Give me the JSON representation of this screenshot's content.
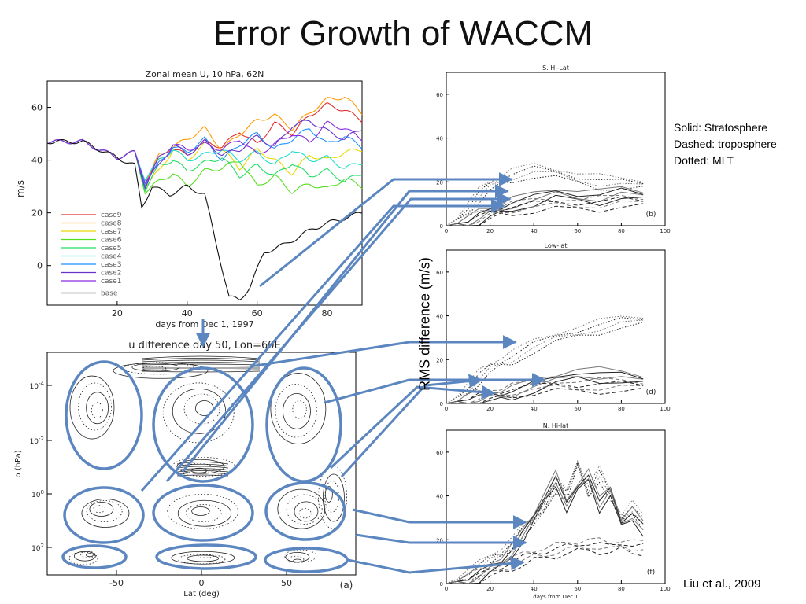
{
  "slide": {
    "title": "Error Growth of WACCM",
    "notes": [
      "Solid: Stratosphere",
      "Dashed: troposphere",
      "Dotted: MLT"
    ],
    "citation": "Liu et al., 2009",
    "rms_label": "RMS difference (m/s)"
  },
  "colors": {
    "arrow": "#5b86c0",
    "ellipse": "#5b86c0",
    "series": {
      "case9": "#e03030",
      "case8": "#ff9900",
      "case7": "#e6d800",
      "case6": "#55dd22",
      "case5": "#22dd66",
      "case4": "#22ddcc",
      "case3": "#1e90ff",
      "case2": "#6633cc",
      "case1": "#8a2be2",
      "base": "#111111"
    }
  },
  "chart_data": [
    {
      "id": "zonal",
      "type": "line",
      "title": "Zonal mean U, 10 hPa, 62N",
      "xlabel": "days from Dec 1, 1997",
      "ylabel": "m/s",
      "xlim": [
        0,
        90
      ],
      "ylim": [
        -15,
        70
      ],
      "xticks": [
        20,
        40,
        60,
        80
      ],
      "yticks": [
        0,
        20,
        40,
        60
      ],
      "legend_position": "lower-left",
      "series": [
        {
          "name": "case9",
          "x": [
            0,
            10,
            20,
            25,
            28,
            32,
            36,
            40,
            45,
            50,
            55,
            60,
            65,
            70,
            75,
            80,
            85,
            90
          ],
          "y": [
            47,
            47,
            41,
            43,
            32,
            40,
            44,
            42,
            47,
            45,
            51,
            46,
            54,
            50,
            57,
            61,
            59,
            55
          ]
        },
        {
          "name": "case8",
          "x": [
            0,
            10,
            20,
            25,
            28,
            32,
            36,
            40,
            45,
            50,
            55,
            60,
            65,
            70,
            75,
            80,
            85,
            90
          ],
          "y": [
            47,
            47,
            41,
            43,
            31,
            42,
            45,
            48,
            52,
            44,
            50,
            55,
            57,
            52,
            58,
            63,
            64,
            58
          ]
        },
        {
          "name": "case7",
          "x": [
            0,
            10,
            20,
            25,
            28,
            32,
            36,
            40,
            45,
            50,
            55,
            60,
            65,
            70,
            75,
            80,
            85,
            90
          ],
          "y": [
            47,
            47,
            41,
            43,
            30,
            36,
            44,
            40,
            46,
            44,
            37,
            44,
            40,
            35,
            42,
            40,
            43,
            44
          ]
        },
        {
          "name": "case6",
          "x": [
            0,
            10,
            20,
            25,
            28,
            32,
            36,
            40,
            45,
            50,
            55,
            60,
            65,
            70,
            75,
            80,
            85,
            90
          ],
          "y": [
            47,
            47,
            41,
            43,
            28,
            32,
            35,
            30,
            36,
            37,
            40,
            30,
            34,
            28,
            31,
            29,
            33,
            30
          ]
        },
        {
          "name": "case5",
          "x": [
            0,
            10,
            20,
            25,
            28,
            32,
            36,
            40,
            45,
            50,
            55,
            60,
            65,
            70,
            75,
            80,
            85,
            90
          ],
          "y": [
            47,
            47,
            41,
            43,
            29,
            38,
            40,
            36,
            39,
            41,
            34,
            38,
            34,
            39,
            34,
            36,
            32,
            35
          ]
        },
        {
          "name": "case4",
          "x": [
            0,
            10,
            20,
            25,
            28,
            32,
            36,
            40,
            45,
            50,
            55,
            60,
            65,
            70,
            75,
            80,
            85,
            90
          ],
          "y": [
            47,
            47,
            41,
            43,
            33,
            40,
            44,
            40,
            42,
            44,
            40,
            43,
            38,
            44,
            40,
            41,
            37,
            39
          ]
        },
        {
          "name": "case3",
          "x": [
            0,
            10,
            20,
            25,
            28,
            32,
            36,
            40,
            45,
            50,
            55,
            60,
            65,
            70,
            75,
            80,
            85,
            90
          ],
          "y": [
            47,
            47,
            41,
            43,
            31,
            39,
            45,
            43,
            48,
            40,
            46,
            50,
            44,
            48,
            52,
            46,
            49,
            45
          ]
        },
        {
          "name": "case2",
          "x": [
            0,
            10,
            20,
            25,
            28,
            32,
            36,
            40,
            45,
            50,
            55,
            60,
            65,
            70,
            75,
            80,
            85,
            90
          ],
          "y": [
            47,
            47,
            41,
            43,
            30,
            41,
            46,
            42,
            47,
            42,
            44,
            49,
            45,
            53,
            55,
            51,
            48,
            52
          ]
        },
        {
          "name": "case1",
          "x": [
            0,
            10,
            20,
            25,
            28,
            32,
            36,
            40,
            45,
            50,
            55,
            60,
            65,
            70,
            75,
            80,
            85,
            90
          ],
          "y": [
            47,
            47,
            41,
            43,
            32,
            38,
            46,
            44,
            46,
            44,
            48,
            42,
            46,
            50,
            47,
            54,
            52,
            48
          ]
        },
        {
          "name": "base",
          "x": [
            0,
            10,
            20,
            25,
            27,
            30,
            35,
            40,
            45,
            48,
            52,
            55,
            58,
            62,
            68,
            72,
            76,
            80,
            85,
            90
          ],
          "y": [
            47,
            47,
            41,
            38,
            22,
            30,
            27,
            30,
            27,
            10,
            -12,
            -13,
            -8,
            5,
            8,
            11,
            14,
            16,
            18,
            20
          ]
        }
      ]
    },
    {
      "id": "udiff",
      "type": "line",
      "title": "u difference   day 50, Lon=60E",
      "xlabel": "Lat (deg)",
      "ylabel": "p (hPa)",
      "xticks": [
        "-50",
        "0",
        "50"
      ],
      "yticks": [
        "10^-4",
        "10^-2",
        "10^0",
        "10^2"
      ],
      "panel_label": "(a)"
    },
    {
      "id": "shilat",
      "type": "line",
      "title": "S. Hi-Lat",
      "panel_label": "(b)",
      "xlim": [
        0,
        100
      ],
      "ylim": [
        0,
        70
      ],
      "xticks": [
        "0",
        "20",
        "40",
        "60",
        "80",
        "100"
      ],
      "yticks": [
        "0",
        "20",
        "40",
        "60"
      ],
      "series": [
        {
          "style": "dotted",
          "x": [
            0,
            5,
            10,
            15,
            20,
            25,
            30,
            40,
            50,
            60,
            70,
            80,
            90
          ],
          "y": [
            0,
            3,
            8,
            14,
            18,
            21,
            23,
            25,
            24,
            22,
            20,
            19,
            19
          ]
        },
        {
          "style": "solid",
          "x": [
            0,
            5,
            10,
            15,
            20,
            25,
            30,
            40,
            50,
            60,
            70,
            80,
            90
          ],
          "y": [
            0,
            1,
            2,
            4,
            6,
            8,
            10,
            12,
            15,
            14,
            13,
            15,
            14
          ]
        },
        {
          "style": "dashed",
          "x": [
            0,
            5,
            10,
            15,
            20,
            25,
            30,
            40,
            50,
            60,
            70,
            80,
            90
          ],
          "y": [
            0,
            1,
            2,
            3,
            5,
            7,
            8,
            9,
            10,
            10,
            10,
            11,
            11
          ]
        }
      ]
    },
    {
      "id": "lowlat",
      "type": "line",
      "title": "Low-lat",
      "panel_label": "(d)",
      "xlim": [
        0,
        100
      ],
      "ylim": [
        0,
        70
      ],
      "xticks": [
        "0",
        "20",
        "40",
        "60",
        "80",
        "100"
      ],
      "yticks": [
        "0",
        "20",
        "40",
        "60"
      ],
      "series": [
        {
          "style": "dotted",
          "x": [
            0,
            5,
            10,
            15,
            20,
            25,
            30,
            40,
            50,
            60,
            70,
            80,
            90
          ],
          "y": [
            0,
            3,
            7,
            12,
            16,
            19,
            21,
            26,
            30,
            33,
            35,
            37,
            38
          ]
        },
        {
          "style": "solid",
          "x": [
            0,
            5,
            10,
            15,
            20,
            25,
            30,
            40,
            50,
            60,
            70,
            80,
            90
          ],
          "y": [
            0,
            1,
            2,
            2,
            3,
            4,
            5,
            8,
            11,
            14,
            13,
            12,
            11
          ]
        },
        {
          "style": "dashed",
          "x": [
            0,
            5,
            10,
            15,
            20,
            25,
            30,
            40,
            50,
            60,
            70,
            80,
            90
          ],
          "y": [
            0,
            1,
            2,
            3,
            4,
            5,
            6,
            7,
            8,
            8,
            8,
            8,
            8
          ]
        }
      ]
    },
    {
      "id": "nhilat",
      "type": "line",
      "title": "N. Hi-lat",
      "panel_label": "(f)",
      "xlabel": "days from Dec 1",
      "xlim": [
        0,
        100
      ],
      "ylim": [
        0,
        70
      ],
      "xticks": [
        "0",
        "20",
        "40",
        "60",
        "80",
        "100"
      ],
      "yticks": [
        "0",
        "20",
        "40",
        "60"
      ],
      "series": [
        {
          "style": "dotted",
          "x": [
            0,
            5,
            10,
            15,
            20,
            25,
            30,
            35,
            40,
            45,
            50,
            55,
            60,
            65,
            70,
            75,
            80,
            85,
            90
          ],
          "y": [
            0,
            2,
            4,
            7,
            11,
            14,
            18,
            24,
            28,
            35,
            45,
            40,
            55,
            42,
            50,
            40,
            30,
            35,
            28
          ]
        },
        {
          "style": "solid",
          "x": [
            0,
            5,
            10,
            15,
            20,
            25,
            30,
            35,
            40,
            45,
            50,
            55,
            60,
            65,
            70,
            75,
            80,
            85,
            90
          ],
          "y": [
            0,
            1,
            2,
            4,
            7,
            10,
            15,
            22,
            30,
            40,
            48,
            35,
            44,
            50,
            36,
            42,
            28,
            32,
            25
          ]
        },
        {
          "style": "dashed",
          "x": [
            0,
            5,
            10,
            15,
            20,
            25,
            30,
            35,
            40,
            45,
            50,
            55,
            60,
            65,
            70,
            75,
            80,
            85,
            90
          ],
          "y": [
            0,
            1,
            2,
            3,
            5,
            7,
            9,
            11,
            13,
            14,
            15,
            16,
            17,
            18,
            17,
            16,
            18,
            17,
            16
          ]
        }
      ]
    }
  ]
}
